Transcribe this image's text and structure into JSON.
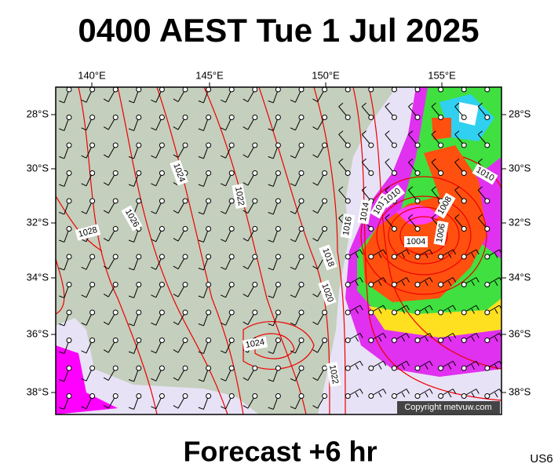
{
  "header": {
    "title": "0400 AEST Tue 1 Jul 2025"
  },
  "map": {
    "lon_labels": [
      "140°E",
      "145°E",
      "150°E",
      "155°E"
    ],
    "lat_labels": [
      "28°S",
      "30°S",
      "32°S",
      "34°S",
      "36°S",
      "38°S"
    ],
    "isobar_labels": [
      "1024",
      "1022",
      "1026",
      "1028",
      "1018",
      "1020",
      "1024",
      "1022",
      "1016",
      "1014",
      "1012",
      "1010",
      "1008",
      "1006",
      "1004",
      "1010"
    ],
    "copyright": "Copyright metvuw.com"
  },
  "footer": {
    "forecast": "Forecast +6 hr",
    "code": "US6"
  }
}
